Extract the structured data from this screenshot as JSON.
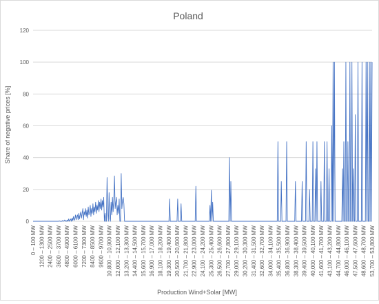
{
  "chart_data": {
    "type": "line",
    "title": "Poland",
    "xlabel": "Production Wind+Solar [MW]",
    "ylabel": "Share of negative prices [%]",
    "ylim": [
      0,
      120
    ],
    "yticks": [
      "0",
      "20",
      "40",
      "60",
      "80",
      "100",
      "120"
    ],
    "grid": true,
    "legend": "none",
    "color": "#4472c4",
    "x_start": 0,
    "x_step": 100,
    "x_tick_labels": [
      "0 – 100 MW",
      "1200 – 1300 MW",
      "2400 – 2500 MW",
      "3600 – 3700 MW",
      "4800 – 4900 MW",
      "6000 – 6100 MW",
      "7200 – 7300 MW",
      "8400 – 8500 MW",
      "9600 – 9700 MW",
      "10,800 – 10,900 MW",
      "12,000 – 12,100 MW",
      "13,200 – 13,300 MW",
      "14,400 – 14,500 MW",
      "15,600 – 15,700 MW",
      "16,900 – 17,000 MW",
      "18,100 – 18,200 MW",
      "19,300 – 19,400 MW",
      "20,500 – 20,600 MW",
      "21,700 – 21,800 MW",
      "22,900 – 23,000 MW",
      "24,100 – 24,200 MW",
      "25,300 – 25,400 MW",
      "26,500 – 26,600 MW",
      "27,700 – 27,800 MW",
      "29,000 – 29,100 MW",
      "30,200 – 30,300 MW",
      "31,400 – 31,500 MW",
      "32,600 – 32,700 MW",
      "34,000 – 34,100 MW",
      "35,400 – 35,500 MW",
      "36,800 – 36,900 MW",
      "38,300 – 38,400 MW",
      "39,400 – 39,500 MW",
      "40,000 – 40,100 MW",
      "41,600 – 41,700 MW",
      "43,100 – 43,200 MW",
      "44,700 – 44,800 MW",
      "46,000 – 46,100 MW",
      "47,500 – 47,600 MW",
      "48,600 – 48,700 MW",
      "53,700 – 53,800 MW"
    ],
    "series": [
      {
        "values": [
          0,
          0,
          0,
          0,
          0,
          0,
          0,
          0,
          0,
          0,
          0,
          0,
          0,
          0,
          0,
          0,
          0,
          0,
          0,
          0,
          0,
          0,
          0,
          0,
          0,
          0,
          0,
          0,
          0,
          0,
          0,
          0,
          0,
          0,
          0,
          0,
          0,
          0,
          0,
          0.3,
          0,
          0,
          0,
          0,
          0.5,
          0,
          0.2,
          0.8,
          0,
          0.4,
          0,
          0.8,
          0,
          1.5,
          0,
          0.5,
          1.5,
          0,
          2,
          0.5,
          3,
          0.5,
          1.5,
          4,
          1,
          3,
          4,
          1,
          5,
          1.5,
          4,
          6,
          2,
          5,
          8,
          1,
          6,
          4,
          8,
          3,
          7,
          2,
          9,
          4,
          6,
          10,
          3,
          8,
          5,
          11,
          4,
          9,
          6,
          12,
          5,
          10,
          7,
          13,
          6,
          12,
          8,
          14,
          7,
          13,
          9,
          15,
          0,
          5,
          0,
          0,
          27.5,
          5,
          0,
          18,
          2,
          0,
          12,
          4,
          15,
          6,
          14,
          28.5,
          8,
          12,
          15,
          4,
          10,
          5,
          14,
          0,
          0,
          30,
          8,
          13,
          15,
          11,
          0,
          0,
          0,
          0,
          0,
          0,
          0,
          0,
          0,
          0,
          0,
          0,
          0,
          0,
          0,
          0,
          0,
          0,
          0,
          0,
          0,
          0,
          0,
          0,
          0,
          0,
          0,
          0,
          0,
          0,
          0,
          0,
          0,
          0,
          0,
          0,
          0,
          0,
          0,
          0,
          0,
          0,
          0,
          0,
          0,
          0,
          0,
          0,
          0,
          0,
          0,
          0,
          0,
          0,
          0,
          0,
          0,
          0,
          0,
          0,
          0,
          0,
          0,
          0,
          0,
          0,
          0,
          14,
          0,
          0,
          0,
          0,
          0,
          0,
          0,
          0,
          0,
          0,
          0,
          14,
          0,
          0,
          0,
          0,
          11,
          0,
          0,
          0,
          0,
          0,
          0,
          0,
          0,
          0,
          0,
          0,
          0,
          0,
          0,
          0,
          0,
          0,
          0,
          0,
          0,
          0,
          22,
          0,
          0,
          0,
          0,
          0,
          0,
          0,
          0,
          0,
          0,
          0,
          0,
          0,
          0,
          0,
          0,
          0,
          0,
          0,
          0,
          10,
          0,
          19.5,
          0,
          12,
          0,
          0,
          0,
          0,
          0,
          0,
          0,
          0,
          0,
          0,
          0,
          0,
          0,
          0,
          0,
          0,
          0,
          0,
          0,
          0,
          0,
          0,
          0,
          0,
          40,
          0,
          25,
          0,
          0,
          0,
          0,
          0,
          0,
          0,
          0,
          0,
          0,
          0,
          0,
          0,
          0,
          0,
          0,
          0,
          0,
          0,
          0,
          0,
          0,
          0,
          0,
          0,
          0,
          0,
          0,
          0,
          0,
          0,
          0,
          0,
          0,
          0,
          0,
          0,
          0,
          0,
          0,
          0,
          0,
          0,
          0,
          0,
          0,
          0,
          0,
          0,
          0,
          0,
          0,
          0,
          0,
          0,
          0,
          0,
          0,
          0,
          0,
          0,
          0,
          0,
          0,
          0,
          0,
          0,
          0,
          0,
          50,
          0,
          0,
          0,
          0,
          25,
          0,
          0,
          0,
          0,
          0,
          0,
          0,
          50,
          0,
          0,
          0,
          0,
          0,
          0,
          0,
          0,
          0,
          0,
          0,
          0,
          25,
          0,
          0,
          0,
          0,
          0,
          0,
          0,
          0,
          0,
          25,
          0,
          0,
          0,
          0,
          0,
          50,
          0,
          0,
          0,
          0,
          20,
          0,
          0,
          0,
          0,
          50,
          0,
          0,
          0,
          33,
          0,
          50,
          0,
          0,
          0,
          0,
          0,
          25,
          0,
          0,
          0,
          0,
          50,
          0,
          0,
          0,
          50,
          0,
          0,
          33,
          0,
          0,
          0,
          60,
          0,
          100,
          0,
          100,
          0,
          0,
          0,
          0,
          0,
          0,
          0,
          0,
          0,
          0,
          0,
          33,
          0,
          50,
          0,
          0,
          100,
          0,
          0,
          50,
          0,
          0,
          100,
          0,
          0,
          100,
          0,
          33,
          0,
          0,
          67,
          0,
          0,
          0,
          100,
          0,
          0,
          0,
          0,
          0,
          100,
          0,
          0,
          0,
          0,
          0,
          100,
          0,
          100,
          0,
          0,
          100,
          0,
          100,
          0,
          100
        ]
      }
    ]
  }
}
